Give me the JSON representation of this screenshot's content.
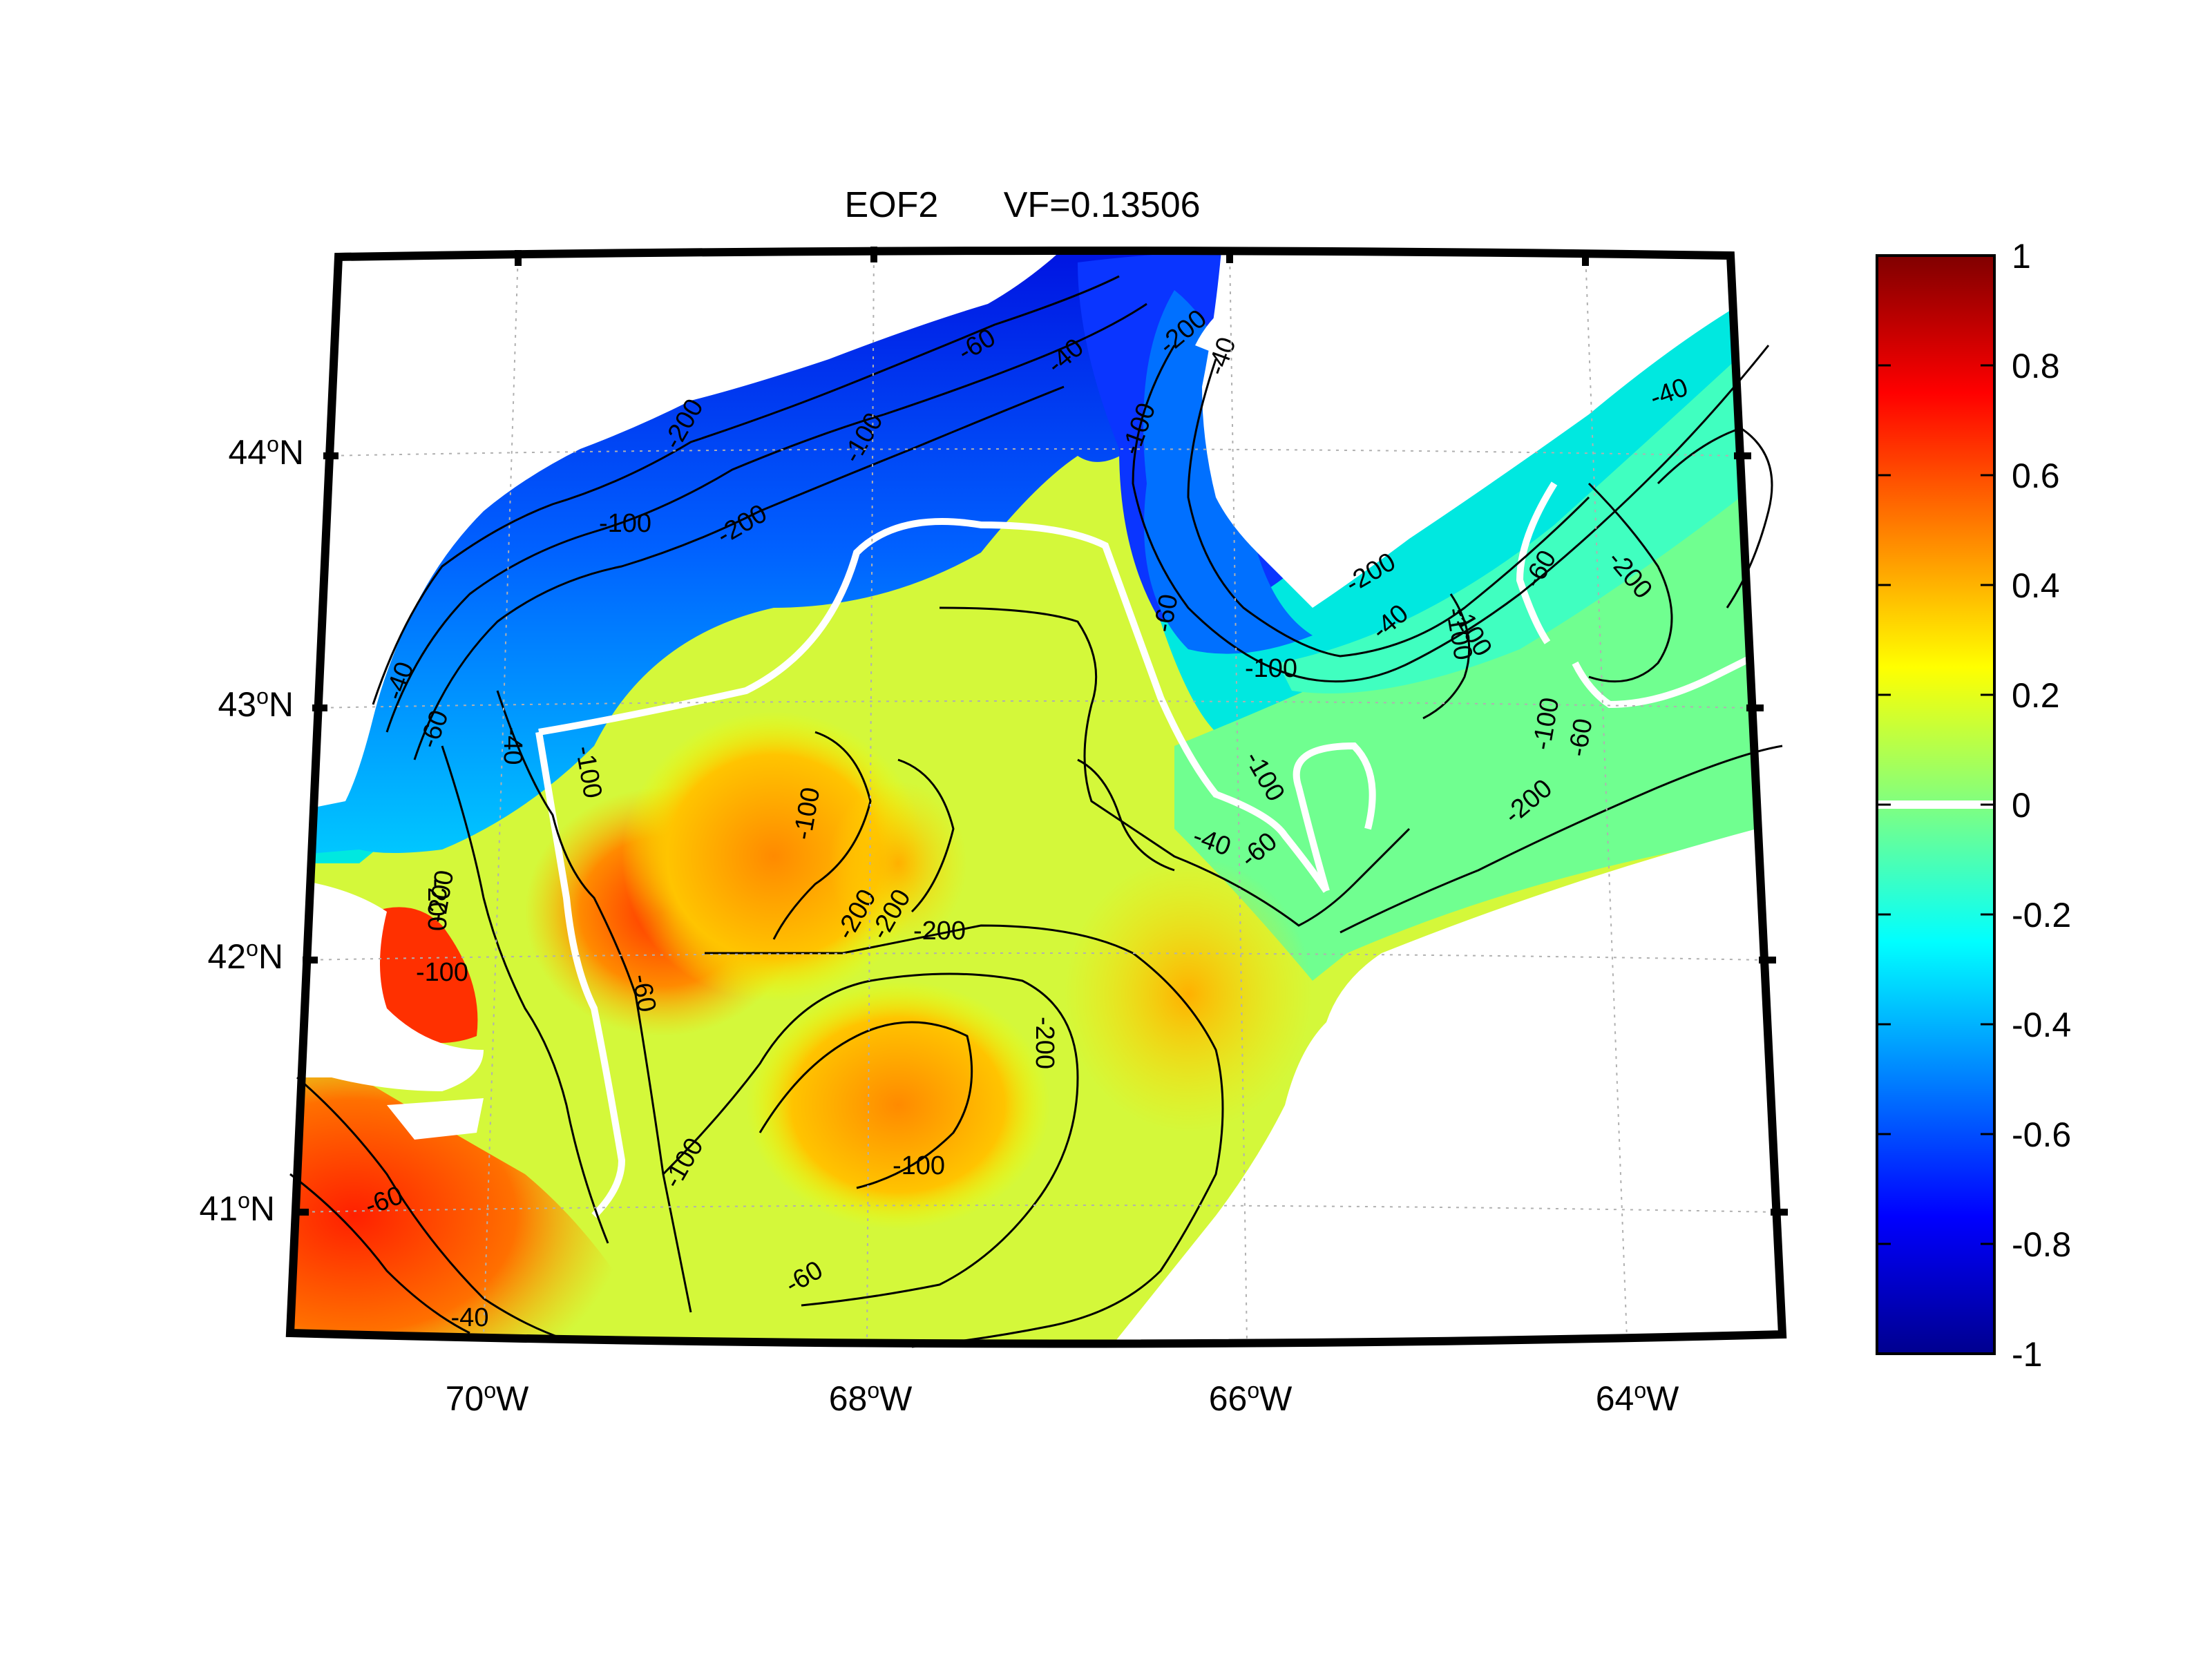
{
  "title": {
    "label": "EOF2",
    "variance_fraction": "VF=0.13506"
  },
  "axes": {
    "latitude_ticks": [
      {
        "deg": "44",
        "hemi": "N",
        "value": 44
      },
      {
        "deg": "43",
        "hemi": "N",
        "value": 43
      },
      {
        "deg": "42",
        "hemi": "N",
        "value": 42
      },
      {
        "deg": "41",
        "hemi": "N",
        "value": 41
      }
    ],
    "longitude_ticks": [
      {
        "deg": "70",
        "hemi": "W",
        "value": -70
      },
      {
        "deg": "68",
        "hemi": "W",
        "value": -68
      },
      {
        "deg": "66",
        "hemi": "W",
        "value": -66
      },
      {
        "deg": "64",
        "hemi": "W",
        "value": -64
      }
    ],
    "lat_range": [
      40.5,
      44.8
    ],
    "lon_range": [
      -71,
      -63.3
    ],
    "grid": true
  },
  "colorbar": {
    "range": [
      -1,
      1
    ],
    "ticks": [
      "1",
      "0.8",
      "0.6",
      "0.4",
      "0.2",
      "0",
      "-0.2",
      "-0.4",
      "-0.6",
      "-0.8",
      "-1"
    ],
    "colormap": "jet",
    "colors": [
      "#00008f",
      "#0000ff",
      "#0080ff",
      "#00ffff",
      "#80ff80",
      "#ffff00",
      "#ff8000",
      "#ff0000",
      "#800000"
    ]
  },
  "contour_labels": [
    "-40",
    "-60",
    "-100",
    "-200",
    "-200",
    "-100",
    "-60",
    "-40",
    "-100",
    "-200",
    "-60",
    "-40",
    "-100",
    "-200",
    "-100",
    "-60",
    "-40",
    "-200",
    "-100",
    "-60",
    "-40",
    "-100",
    "-200",
    "-100",
    "-60",
    "-40",
    "-200",
    "-100",
    "-200",
    "-60",
    "-100",
    "-40",
    "-200",
    "-100",
    "-60",
    "-40",
    "-200",
    "-100",
    "-200",
    "-60",
    "-100",
    "-200"
  ],
  "colors": {
    "land": "#ffffff",
    "zero_contour": "#ffffff",
    "frame": "#000000"
  }
}
